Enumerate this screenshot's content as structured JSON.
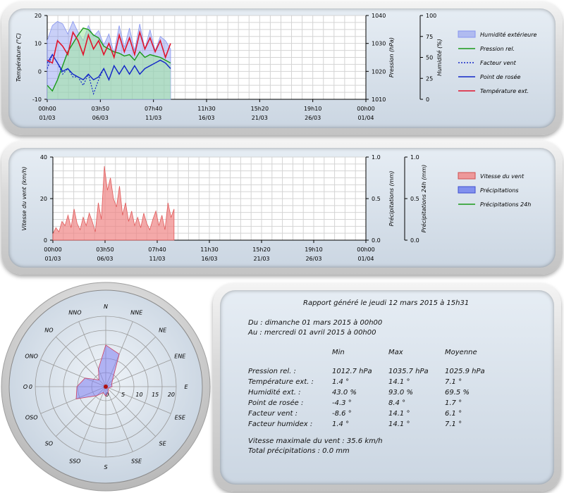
{
  "colors": {
    "humidity": "#8896f0",
    "pressure": "#1a9a1a",
    "wind_chill": "#1428c8",
    "dew_point": "#1428c8",
    "temperature": "#e0142c",
    "wind_speed": "#f08484",
    "precip": "#6a7aee",
    "precip24": "#1a9a1a",
    "wind_rose": "#8080f0"
  },
  "chart_data": [
    {
      "type": "line",
      "x_ticks": [
        [
          "00h00",
          "01/03"
        ],
        [
          "03h50",
          "06/03"
        ],
        [
          "07h40",
          "11/03"
        ],
        [
          "11h30",
          "16/03"
        ],
        [
          "15h20",
          "21/03"
        ],
        [
          "19h10",
          "26/03"
        ],
        [
          "00h00",
          "01/04"
        ]
      ],
      "xlim": [
        0,
        31
      ],
      "y_left": {
        "label": "Température (°C)",
        "ticks": [
          "20",
          "10",
          "0",
          "-10"
        ],
        "lim": [
          -10,
          20
        ]
      },
      "y_right1": {
        "label": "Pression (hPa)",
        "ticks": [
          "1040",
          "1030",
          "1020",
          "1010"
        ],
        "lim": [
          1010,
          1040
        ]
      },
      "y_right2": {
        "label": "Humidité (%)",
        "ticks": [
          "100",
          "75",
          "50",
          "25",
          "0"
        ],
        "lim": [
          0,
          100
        ]
      },
      "legend": [
        "Humidité extérieure",
        "Pression rel.",
        "Facteur vent",
        "Point de rosée",
        "Température ext."
      ],
      "series": {
        "humidity": {
          "x": [
            0,
            0.5,
            1,
            1.5,
            2,
            2.5,
            3,
            3.5,
            4,
            4.5,
            5,
            5.5,
            6,
            6.5,
            7,
            7.5,
            8,
            8.5,
            9,
            9.5,
            10,
            10.5,
            11,
            11.5,
            12
          ],
          "y": [
            70,
            88,
            93,
            90,
            78,
            93,
            80,
            70,
            88,
            75,
            82,
            65,
            78,
            55,
            88,
            62,
            85,
            58,
            90,
            60,
            83,
            58,
            75,
            70,
            60
          ]
        },
        "pressure": {
          "x": [
            0,
            0.5,
            1,
            1.5,
            2,
            2.5,
            3,
            3.5,
            4,
            4.5,
            5,
            5.5,
            6,
            6.5,
            7,
            7.5,
            8,
            8.5,
            9,
            9.5,
            10,
            10.5,
            11,
            11.5,
            12
          ],
          "y": [
            1015,
            1013,
            1017,
            1022,
            1027,
            1030,
            1033,
            1035.5,
            1035,
            1033,
            1032,
            1029,
            1028,
            1027,
            1026.5,
            1025.5,
            1026,
            1024,
            1027,
            1025,
            1026,
            1025.5,
            1025,
            1024,
            1023
          ]
        },
        "wind_chill": {
          "x": [
            0,
            0.5,
            1,
            1.5,
            2,
            2.5,
            3,
            3.5,
            4,
            4.5,
            5,
            5.5,
            6,
            6.5,
            7,
            7.5,
            8,
            8.5,
            9,
            9.5,
            10,
            10.5,
            11,
            11.5,
            12
          ],
          "y": [
            1,
            6,
            3,
            -1,
            1,
            -2,
            -2,
            -5,
            -1,
            -8,
            -3,
            1,
            -3,
            2,
            -1,
            2,
            -1,
            2,
            -1,
            1,
            2,
            3,
            4,
            3,
            1
          ]
        },
        "dew_point": {
          "x": [
            0,
            0.5,
            1,
            1.5,
            2,
            2.5,
            3,
            3.5,
            4,
            4.5,
            5,
            5.5,
            6,
            6.5,
            7,
            7.5,
            8,
            8.5,
            9,
            9.5,
            10,
            10.5,
            11,
            11.5,
            12
          ],
          "y": [
            3,
            6,
            3,
            0,
            1,
            -1,
            -2,
            -3,
            -1,
            -3,
            -2,
            1,
            -3,
            2,
            -1,
            2,
            -1,
            2,
            -1,
            1,
            2,
            3,
            4,
            3,
            1
          ]
        },
        "temperature": {
          "x": [
            0,
            0.5,
            1,
            1.5,
            2,
            2.5,
            3,
            3.5,
            4,
            4.5,
            5,
            5.5,
            6,
            6.5,
            7,
            7.5,
            8,
            8.5,
            9,
            9.5,
            10,
            10.5,
            11,
            11.5,
            12
          ],
          "y": [
            4,
            3,
            11,
            9,
            6,
            14,
            11,
            6,
            13,
            8,
            11,
            6,
            10,
            5,
            13,
            7,
            12,
            6,
            14,
            8,
            12,
            7,
            11,
            5,
            10
          ]
        }
      }
    },
    {
      "type": "bar",
      "x_ticks": [
        [
          "00h00",
          "01/03"
        ],
        [
          "03h50",
          "06/03"
        ],
        [
          "07h40",
          "11/03"
        ],
        [
          "11h30",
          "16/03"
        ],
        [
          "15h20",
          "21/03"
        ],
        [
          "19h10",
          "26/03"
        ],
        [
          "00h00",
          "01/04"
        ]
      ],
      "xlim": [
        0,
        31
      ],
      "y_left": {
        "label": "Vitesse du vent (km/h)",
        "ticks": [
          "40",
          "20",
          "0"
        ],
        "lim": [
          0,
          40
        ]
      },
      "y_right1": {
        "label": "Précipitations (mm)",
        "ticks": [
          "1.0",
          "0.5",
          "0.0"
        ],
        "lim": [
          0,
          1
        ]
      },
      "y_right2": {
        "label": "Précipitations 24h (mm)",
        "ticks": [
          "1.0",
          "0.5",
          "0.0"
        ],
        "lim": [
          0,
          1
        ]
      },
      "legend": [
        "Vitesse du vent",
        "Précipitations",
        "Précipitations 24h"
      ],
      "series": {
        "wind_speed": {
          "x": [
            0,
            0.3,
            0.6,
            0.9,
            1.2,
            1.5,
            1.8,
            2.1,
            2.4,
            2.7,
            3,
            3.3,
            3.6,
            3.9,
            4.2,
            4.5,
            4.8,
            5.1,
            5.4,
            5.7,
            6,
            6.3,
            6.6,
            6.9,
            7.2,
            7.5,
            7.8,
            8.1,
            8.4,
            8.7,
            9,
            9.3,
            9.6,
            9.9,
            10.2,
            10.5,
            10.8,
            11.1,
            11.4,
            11.7,
            12
          ],
          "y": [
            3,
            6,
            4,
            9,
            7,
            12,
            6,
            15,
            8,
            5,
            11,
            7,
            13,
            9,
            4,
            18,
            10,
            35.6,
            24,
            30,
            20,
            16,
            26,
            12,
            18,
            9,
            14,
            7,
            11,
            6,
            13,
            8,
            5,
            10,
            14,
            7,
            12,
            5,
            18,
            11,
            15
          ]
        },
        "precip": {
          "x": [],
          "y": []
        },
        "precip24": {
          "x": [],
          "y": []
        }
      }
    },
    {
      "type": "radar",
      "labels": [
        "N",
        "NNE",
        "NE",
        "ENE",
        "E",
        "ESE",
        "SE",
        "SSE",
        "S",
        "SSO",
        "SO",
        "OSO",
        "O",
        "ONO",
        "NO",
        "NNO"
      ],
      "ring_ticks": [
        "0",
        "5",
        "10",
        "15",
        "20"
      ],
      "rlim": [
        0,
        22
      ],
      "values": [
        13,
        11,
        3,
        2,
        2,
        1,
        1,
        2,
        3,
        2,
        4,
        10,
        9,
        7,
        3,
        6
      ]
    }
  ],
  "report": {
    "title": "Rapport généré le jeudi 12 mars 2015 à 15h31",
    "from": "Du : dimanche 01 mars 2015 à 00h00",
    "to": "Au : mercredi 01 avril 2015 à 00h00",
    "headers": [
      "Min",
      "Max",
      "Moyenne"
    ],
    "rows": [
      {
        "label": "Pression rel. :",
        "min": "1012.7 hPa",
        "max": "1035.7 hPa",
        "avg": "1025.9 hPa"
      },
      {
        "label": "Température ext. :",
        "min": "1.4 °",
        "max": "14.1 °",
        "avg": "7.1 °"
      },
      {
        "label": "Humidité ext. :",
        "min": "43.0 %",
        "max": "93.0 %",
        "avg": "69.5 %"
      },
      {
        "label": "Point de rosée :",
        "min": "-4.3 °",
        "max": "8.4 °",
        "avg": "1.7 °"
      },
      {
        "label": "Facteur vent :",
        "min": "-8.6 °",
        "max": "14.1 °",
        "avg": "6.1 °"
      },
      {
        "label": "Facteur humidex :",
        "min": "1.4 °",
        "max": "14.1 °",
        "avg": "7.1 °"
      }
    ],
    "max_wind": "Vitesse maximale du vent : 35.6 km/h",
    "total_precip": "Total précipitations : 0.0 mm"
  }
}
